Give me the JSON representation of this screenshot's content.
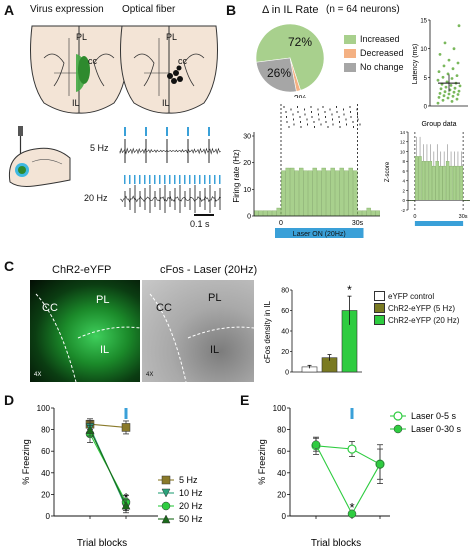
{
  "figure": {
    "panel_letters": [
      "A",
      "B",
      "C",
      "D",
      "E"
    ],
    "colors": {
      "light_green": "#a8d08d",
      "dark_olive": "#7a7a22",
      "bright_green": "#2ecc40",
      "dark_green": "#1a6a1a",
      "salmon": "#f4b183",
      "gray": "#a6a6a6",
      "laser_blue": "#3aa0d8"
    }
  },
  "panel_a": {
    "title_left": "Virus expression",
    "title_right": "Optical fiber",
    "region_labels": [
      "PL",
      "cc",
      "IL",
      "PL",
      "cc",
      "IL"
    ],
    "trace_labels": [
      "5 Hz",
      "20 Hz"
    ],
    "scale_bar": "0.1 s"
  },
  "panel_b": {
    "pie_title": "Δ in IL Rate",
    "pie_n": "(n = 64 neurons)",
    "legend": [
      "Increased",
      "Decreased",
      "No change"
    ],
    "latency_label": "Latency (ms)",
    "firing_ylabel": "Firing rate (Hz)",
    "group_title": "Group data",
    "zscore_label": "Z-score",
    "laser_label": "Laser ON (20Hz)",
    "firing_yticks": [
      "0",
      "10",
      "20",
      "30"
    ],
    "firing_xticks": [
      "0",
      "30s"
    ],
    "latency_yticks": [
      "0",
      "5",
      "10",
      "15"
    ],
    "group_xticks": [
      "0",
      "30s"
    ],
    "group_yticks": [
      "-2",
      "0",
      "2",
      "4",
      "6",
      "8",
      "10",
      "12",
      "14"
    ]
  },
  "panel_c": {
    "img_left_title": "ChR2-eYFP",
    "img_right_title": "cFos - Laser (20Hz)",
    "img_labels_left": [
      "CC",
      "PL",
      "IL",
      "4X"
    ],
    "img_labels_right": [
      "CC",
      "PL",
      "IL",
      "4X"
    ],
    "bar_ylabel": "cFos density in IL",
    "bar_yticks": [
      "0",
      "20",
      "40",
      "60",
      "80"
    ],
    "legend": [
      "eYFP control",
      "ChR2-eYFP (5 Hz)",
      "ChR2-eYFP (20 Hz)"
    ],
    "star": "*"
  },
  "panel_d": {
    "ylabel": "% Freezing",
    "xlabel": "Trial blocks",
    "yticks": [
      "0",
      "20",
      "40",
      "60",
      "80",
      "100"
    ],
    "legend": [
      "5 Hz",
      "10 Hz",
      "20 Hz",
      "50 Hz"
    ],
    "star": "*"
  },
  "panel_e": {
    "ylabel": "% Freezing",
    "xlabel": "Trial blocks",
    "yticks": [
      "0",
      "20",
      "40",
      "60",
      "80",
      "100"
    ],
    "legend": [
      "Laser 0-5 s",
      "Laser 0-30 s"
    ],
    "star": "*"
  },
  "chart_data": [
    {
      "type": "pie",
      "title": "Δ in IL Rate",
      "subtitle": "(n = 64 neurons)",
      "categories": [
        "Increased",
        "Decreased",
        "No change"
      ],
      "values": [
        72,
        2,
        26
      ],
      "colors": [
        "#a8d08d",
        "#f4b183",
        "#a6a6a6"
      ],
      "legend": "right"
    },
    {
      "type": "scatter",
      "ylabel": "Latency (ms)",
      "ylim": [
        0,
        15
      ],
      "yticks": [
        0,
        5,
        10,
        15
      ],
      "mean": 4,
      "values": [
        0.5,
        0.8,
        1,
        1.2,
        1.4,
        1.5,
        1.7,
        1.8,
        2,
        2.1,
        2.2,
        2.4,
        2.5,
        2.6,
        2.8,
        3,
        3.1,
        3.3,
        3.5,
        3.6,
        3.8,
        4,
        4.2,
        4.5,
        4.8,
        5,
        5.3,
        5.6,
        6,
        6.5,
        7,
        7.5,
        8,
        9,
        10,
        11,
        14
      ]
    },
    {
      "type": "bar",
      "ylabel": "Firing rate (Hz)",
      "ylim": [
        0,
        30
      ],
      "yticks": [
        0,
        10,
        20,
        30
      ],
      "xticks": [
        "0",
        "30s"
      ],
      "laser": "Laser ON (20Hz)",
      "values": [
        2,
        2,
        2,
        2,
        2,
        3,
        17,
        18,
        18,
        17,
        18,
        17,
        17,
        18,
        17,
        18,
        17,
        18,
        17,
        18,
        17,
        18,
        17,
        2,
        2,
        3,
        2,
        2
      ]
    },
    {
      "type": "bar",
      "title": "Group data",
      "ylabel": "Z-score",
      "ylim": [
        -2,
        14
      ],
      "yticks": [
        -2,
        0,
        2,
        4,
        6,
        8,
        10,
        12,
        14
      ],
      "xticks": [
        "0",
        "30s"
      ],
      "values": [
        0,
        0,
        9,
        9,
        8,
        8,
        8,
        7,
        8,
        7,
        7,
        8,
        7,
        7,
        7,
        7,
        0,
        0
      ],
      "errors": [
        0.5,
        0.5,
        4,
        4,
        3.5,
        3.5,
        3.5,
        3,
        3.5,
        3,
        3,
        3.5,
        3,
        3,
        3,
        3,
        0.5,
        0.5
      ]
    },
    {
      "type": "bar",
      "ylabel": "cFos density in IL",
      "ylim": [
        0,
        80
      ],
      "yticks": [
        0,
        20,
        40,
        60,
        80
      ],
      "categories": [
        "eYFP control",
        "ChR2-eYFP (5 Hz)",
        "ChR2-eYFP (20 Hz)"
      ],
      "values": [
        5,
        14,
        60
      ],
      "errors": [
        1.5,
        3,
        14
      ],
      "colors": [
        "#ffffff",
        "#7a7a22",
        "#2ecc40"
      ],
      "legend": "right"
    },
    {
      "type": "line",
      "ylabel": "% Freezing",
      "xlabel": "Trial blocks",
      "ylim": [
        0,
        100
      ],
      "yticks": [
        0,
        20,
        40,
        60,
        80,
        100
      ],
      "x": [
        1,
        2
      ],
      "series": [
        {
          "name": "5 Hz",
          "values": [
            85,
            82
          ],
          "errors": [
            5,
            6
          ],
          "color": "#8a7a2a",
          "marker": "square"
        },
        {
          "name": "10 Hz",
          "values": [
            82,
            8
          ],
          "errors": [
            6,
            5
          ],
          "color": "#2aa37a",
          "marker": "triangle-down"
        },
        {
          "name": "20 Hz",
          "values": [
            76,
            13
          ],
          "errors": [
            8,
            6
          ],
          "color": "#2ecc40",
          "marker": "circle"
        },
        {
          "name": "50 Hz",
          "values": [
            80,
            10
          ],
          "errors": [
            6,
            5
          ],
          "color": "#1a6a1a",
          "marker": "triangle-up"
        }
      ],
      "legend": "right"
    },
    {
      "type": "line",
      "ylabel": "% Freezing",
      "xlabel": "Trial blocks",
      "ylim": [
        0,
        100
      ],
      "yticks": [
        0,
        20,
        40,
        60,
        80,
        100
      ],
      "x": [
        1,
        2,
        3
      ],
      "series": [
        {
          "name": "Laser 0-5 s",
          "values": [
            65,
            62,
            48
          ],
          "errors": [
            8,
            7,
            18
          ],
          "color": "#2ecc40",
          "marker": "open-circle"
        },
        {
          "name": "Laser 0-30 s",
          "values": [
            66,
            2,
            48
          ],
          "errors": [
            6,
            2,
            14
          ],
          "color": "#2ecc40",
          "marker": "circle"
        }
      ],
      "legend": "top-right"
    }
  ]
}
